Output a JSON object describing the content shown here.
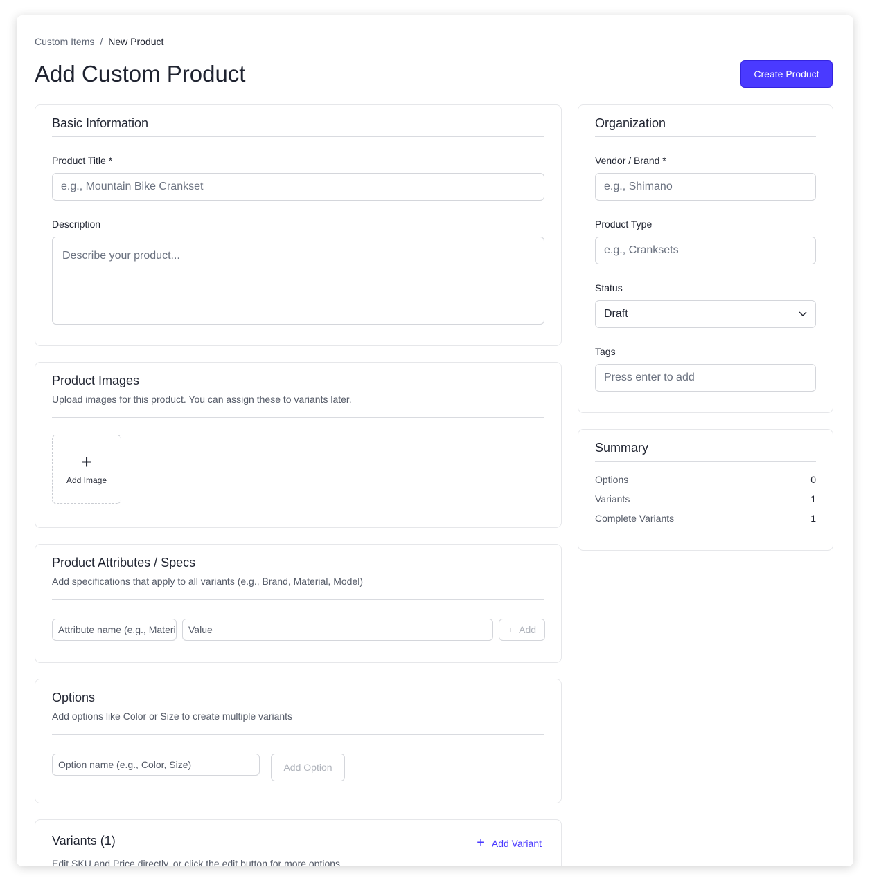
{
  "breadcrumb": {
    "parent": "Custom Items",
    "separator": "/",
    "current": "New Product"
  },
  "page_title": "Add Custom Product",
  "create_button": "Create Product",
  "basic": {
    "title": "Basic Information",
    "product_title_label": "Product Title *",
    "product_title_placeholder": "e.g., Mountain Bike Crankset",
    "description_label": "Description",
    "description_placeholder": "Describe your product..."
  },
  "images": {
    "title": "Product Images",
    "subtitle": "Upload images for this product. You can assign these to variants later.",
    "add_label": "Add Image"
  },
  "attributes": {
    "title": "Product Attributes / Specs",
    "subtitle": "Add specifications that apply to all variants (e.g., Brand, Material, Model)",
    "name_placeholder": "Attribute name (e.g., Material)",
    "value_placeholder": "Value",
    "add_label": "Add"
  },
  "options": {
    "title": "Options",
    "subtitle": "Add options like Color or Size to create multiple variants",
    "name_placeholder": "Option name (e.g., Color, Size)",
    "add_label": "Add Option"
  },
  "variants": {
    "title": "Variants (1)",
    "add_label": "Add Variant",
    "subtitle": "Edit SKU and Price directly, or click the edit button for more options"
  },
  "organization": {
    "title": "Organization",
    "vendor_label": "Vendor / Brand *",
    "vendor_placeholder": "e.g., Shimano",
    "type_label": "Product Type",
    "type_placeholder": "e.g., Cranksets",
    "status_label": "Status",
    "status_value": "Draft",
    "tags_label": "Tags",
    "tags_placeholder": "Press enter to add"
  },
  "summary": {
    "title": "Summary",
    "rows": [
      {
        "label": "Options",
        "value": "0"
      },
      {
        "label": "Variants",
        "value": "1"
      },
      {
        "label": "Complete Variants",
        "value": "1"
      }
    ]
  },
  "colors": {
    "accent": "#4a3aff"
  }
}
